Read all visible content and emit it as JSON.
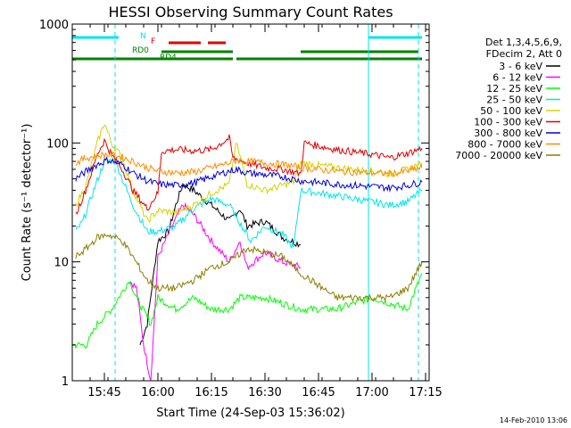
{
  "chart_data": {
    "type": "line",
    "title": "HESSI Observing Summary Count Rates",
    "xlabel": "Start Time (24-Sep-03 15:36:02)",
    "ylabel": "Count Rate (s⁻¹ detector⁻¹)",
    "y_scale": "log",
    "ylim": [
      1,
      1000
    ],
    "xlim": [
      "15:36",
      "17:16"
    ],
    "x_ticks": [
      "15:45",
      "16:00",
      "16:15",
      "16:30",
      "16:45",
      "17:00",
      "17:15"
    ],
    "y_ticks": [
      "1",
      "10",
      "100",
      "1000"
    ],
    "legend_header": [
      "Det 1,3,4,5,6,9,",
      "FDecim 2, Att 0"
    ],
    "legend_position": "right",
    "footer": "14-Feb-2010 13:06",
    "flags": [
      {
        "name": "N",
        "color": "#00e5ee",
        "intervals": [
          [
            "15:36",
            "15:49"
          ],
          [
            "16:59",
            "17:14"
          ]
        ]
      },
      {
        "name": "F",
        "color": "#e00000",
        "intervals": [
          [
            "16:03",
            "16:12"
          ],
          [
            "16:14",
            "16:19"
          ]
        ]
      },
      {
        "name": "RD0",
        "color": "#008000",
        "intervals": [
          [
            "16:01",
            "16:21"
          ],
          [
            "16:40",
            "17:13"
          ]
        ]
      },
      {
        "name": "RD4",
        "color": "#008000",
        "intervals": [
          [
            "15:36",
            "16:21"
          ],
          [
            "16:22",
            "16:40"
          ],
          [
            "16:40",
            "17:14"
          ]
        ]
      }
    ],
    "vlines": {
      "solid": [
        "15:36",
        "16:59"
      ],
      "dashed": [
        "15:48",
        "17:13"
      ],
      "color": "#00e5ee"
    },
    "series": [
      {
        "name": "3 - 6 keV",
        "color": "#000000",
        "x": [
          "15:55",
          "15:57",
          "16:00",
          "16:03",
          "16:05",
          "16:07",
          "16:10",
          "16:15",
          "16:20",
          "16:23",
          "16:25",
          "16:30",
          "16:35",
          "16:40"
        ],
        "y": [
          2,
          3,
          15,
          18,
          30,
          45,
          40,
          30,
          22,
          28,
          20,
          22,
          16,
          14
        ]
      },
      {
        "name": "6 - 12 keV",
        "color": "#ff00ff",
        "x": [
          "15:52",
          "15:54",
          "15:56",
          "15:58",
          "16:00",
          "16:04",
          "16:07",
          "16:10",
          "16:15",
          "16:20",
          "16:23",
          "16:25",
          "16:30",
          "16:35",
          "16:40"
        ],
        "y": [
          7,
          6,
          2,
          1,
          11,
          20,
          30,
          25,
          15,
          10,
          15,
          9,
          12,
          10,
          9
        ]
      },
      {
        "name": "12 - 25 keV",
        "color": "#00ff00",
        "x": [
          "15:36",
          "15:40",
          "15:43",
          "15:47",
          "15:52",
          "15:54",
          "15:58",
          "16:00",
          "16:05",
          "16:10",
          "16:15",
          "16:20",
          "16:23",
          "16:30",
          "16:40",
          "16:50",
          "17:00",
          "17:10",
          "17:14"
        ],
        "y": [
          2,
          2,
          3,
          4,
          7,
          5,
          3,
          5,
          4,
          5,
          4,
          4,
          5,
          5,
          4,
          4,
          5,
          4,
          8
        ]
      },
      {
        "name": "25 - 50 keV",
        "color": "#00e5ee",
        "x": [
          "15:37",
          "15:39",
          "15:42",
          "15:45",
          "15:48",
          "15:50",
          "15:53",
          "15:57",
          "16:00",
          "16:05",
          "16:10",
          "16:15",
          "16:20",
          "16:22",
          "16:26",
          "16:30",
          "16:35",
          "16:38",
          "16:40",
          "16:50",
          "17:00",
          "17:05",
          "17:10",
          "17:14"
        ],
        "y": [
          18,
          22,
          40,
          70,
          72,
          50,
          30,
          18,
          18,
          20,
          28,
          34,
          30,
          24,
          15,
          20,
          17,
          13,
          40,
          36,
          32,
          30,
          32,
          40
        ]
      },
      {
        "name": "50 - 100 keV",
        "color": "#d4d400",
        "x": [
          "15:37",
          "15:40",
          "15:43",
          "15:45",
          "15:47",
          "15:50",
          "15:53",
          "15:57",
          "16:00",
          "16:05",
          "16:10",
          "16:15",
          "16:20",
          "16:22",
          "16:25",
          "16:30",
          "16:35",
          "16:38",
          "16:40",
          "16:50",
          "17:00",
          "17:05",
          "17:10",
          "17:14"
        ],
        "y": [
          30,
          45,
          100,
          148,
          100,
          75,
          40,
          22,
          27,
          26,
          30,
          38,
          45,
          100,
          45,
          40,
          44,
          47,
          68,
          62,
          58,
          55,
          60,
          68
        ]
      },
      {
        "name": "100 - 300 keV",
        "color": "#e00000",
        "x": [
          "15:37",
          "15:40",
          "15:43",
          "15:45",
          "15:47",
          "15:50",
          "15:53",
          "15:57",
          "16:00",
          "16:01",
          "16:05",
          "16:10",
          "16:15",
          "16:20",
          "16:21",
          "16:25",
          "16:30",
          "16:35",
          "16:40",
          "16:41",
          "16:50",
          "17:00",
          "17:05",
          "17:10",
          "17:14"
        ],
        "y": [
          25,
          42,
          80,
          105,
          80,
          60,
          40,
          28,
          38,
          85,
          88,
          86,
          88,
          110,
          75,
          68,
          62,
          60,
          55,
          100,
          88,
          80,
          75,
          82,
          90
        ]
      },
      {
        "name": "300 - 800 keV",
        "color": "#0000dd",
        "x": [
          "15:37",
          "15:40",
          "15:43",
          "15:46",
          "15:50",
          "15:53",
          "15:57",
          "16:00",
          "16:05",
          "16:10",
          "16:15",
          "16:20",
          "16:22",
          "16:25",
          "16:30",
          "16:35",
          "16:40",
          "16:50",
          "17:00",
          "17:05",
          "17:10",
          "17:14"
        ],
        "y": [
          50,
          58,
          66,
          72,
          66,
          56,
          48,
          45,
          44,
          46,
          52,
          58,
          60,
          56,
          54,
          52,
          48,
          45,
          43,
          42,
          44,
          47
        ]
      },
      {
        "name": "800 - 7000 keV",
        "color": "#ff8c00",
        "x": [
          "15:37",
          "15:40",
          "15:43",
          "15:46",
          "15:50",
          "15:53",
          "15:57",
          "16:00",
          "16:05",
          "16:10",
          "16:15",
          "16:20",
          "16:22",
          "16:25",
          "16:30",
          "16:35",
          "16:40",
          "16:50",
          "17:00",
          "17:05",
          "17:10",
          "17:14"
        ],
        "y": [
          68,
          75,
          78,
          80,
          76,
          70,
          62,
          58,
          56,
          57,
          62,
          68,
          72,
          70,
          68,
          66,
          62,
          58,
          56,
          55,
          58,
          62
        ]
      },
      {
        "name": "7000 - 20000 keV",
        "color": "#8b7d00",
        "x": [
          "15:37",
          "15:40",
          "15:43",
          "15:46",
          "15:50",
          "15:53",
          "15:57",
          "16:00",
          "16:05",
          "16:10",
          "16:15",
          "16:20",
          "16:25",
          "16:30",
          "16:35",
          "16:40",
          "16:50",
          "17:00",
          "17:05",
          "17:10",
          "17:14"
        ],
        "y": [
          11,
          13,
          16,
          17,
          15,
          11,
          7,
          6,
          6,
          7,
          9,
          10,
          13,
          12,
          11,
          8,
          5,
          5,
          5,
          6,
          10
        ]
      }
    ]
  }
}
